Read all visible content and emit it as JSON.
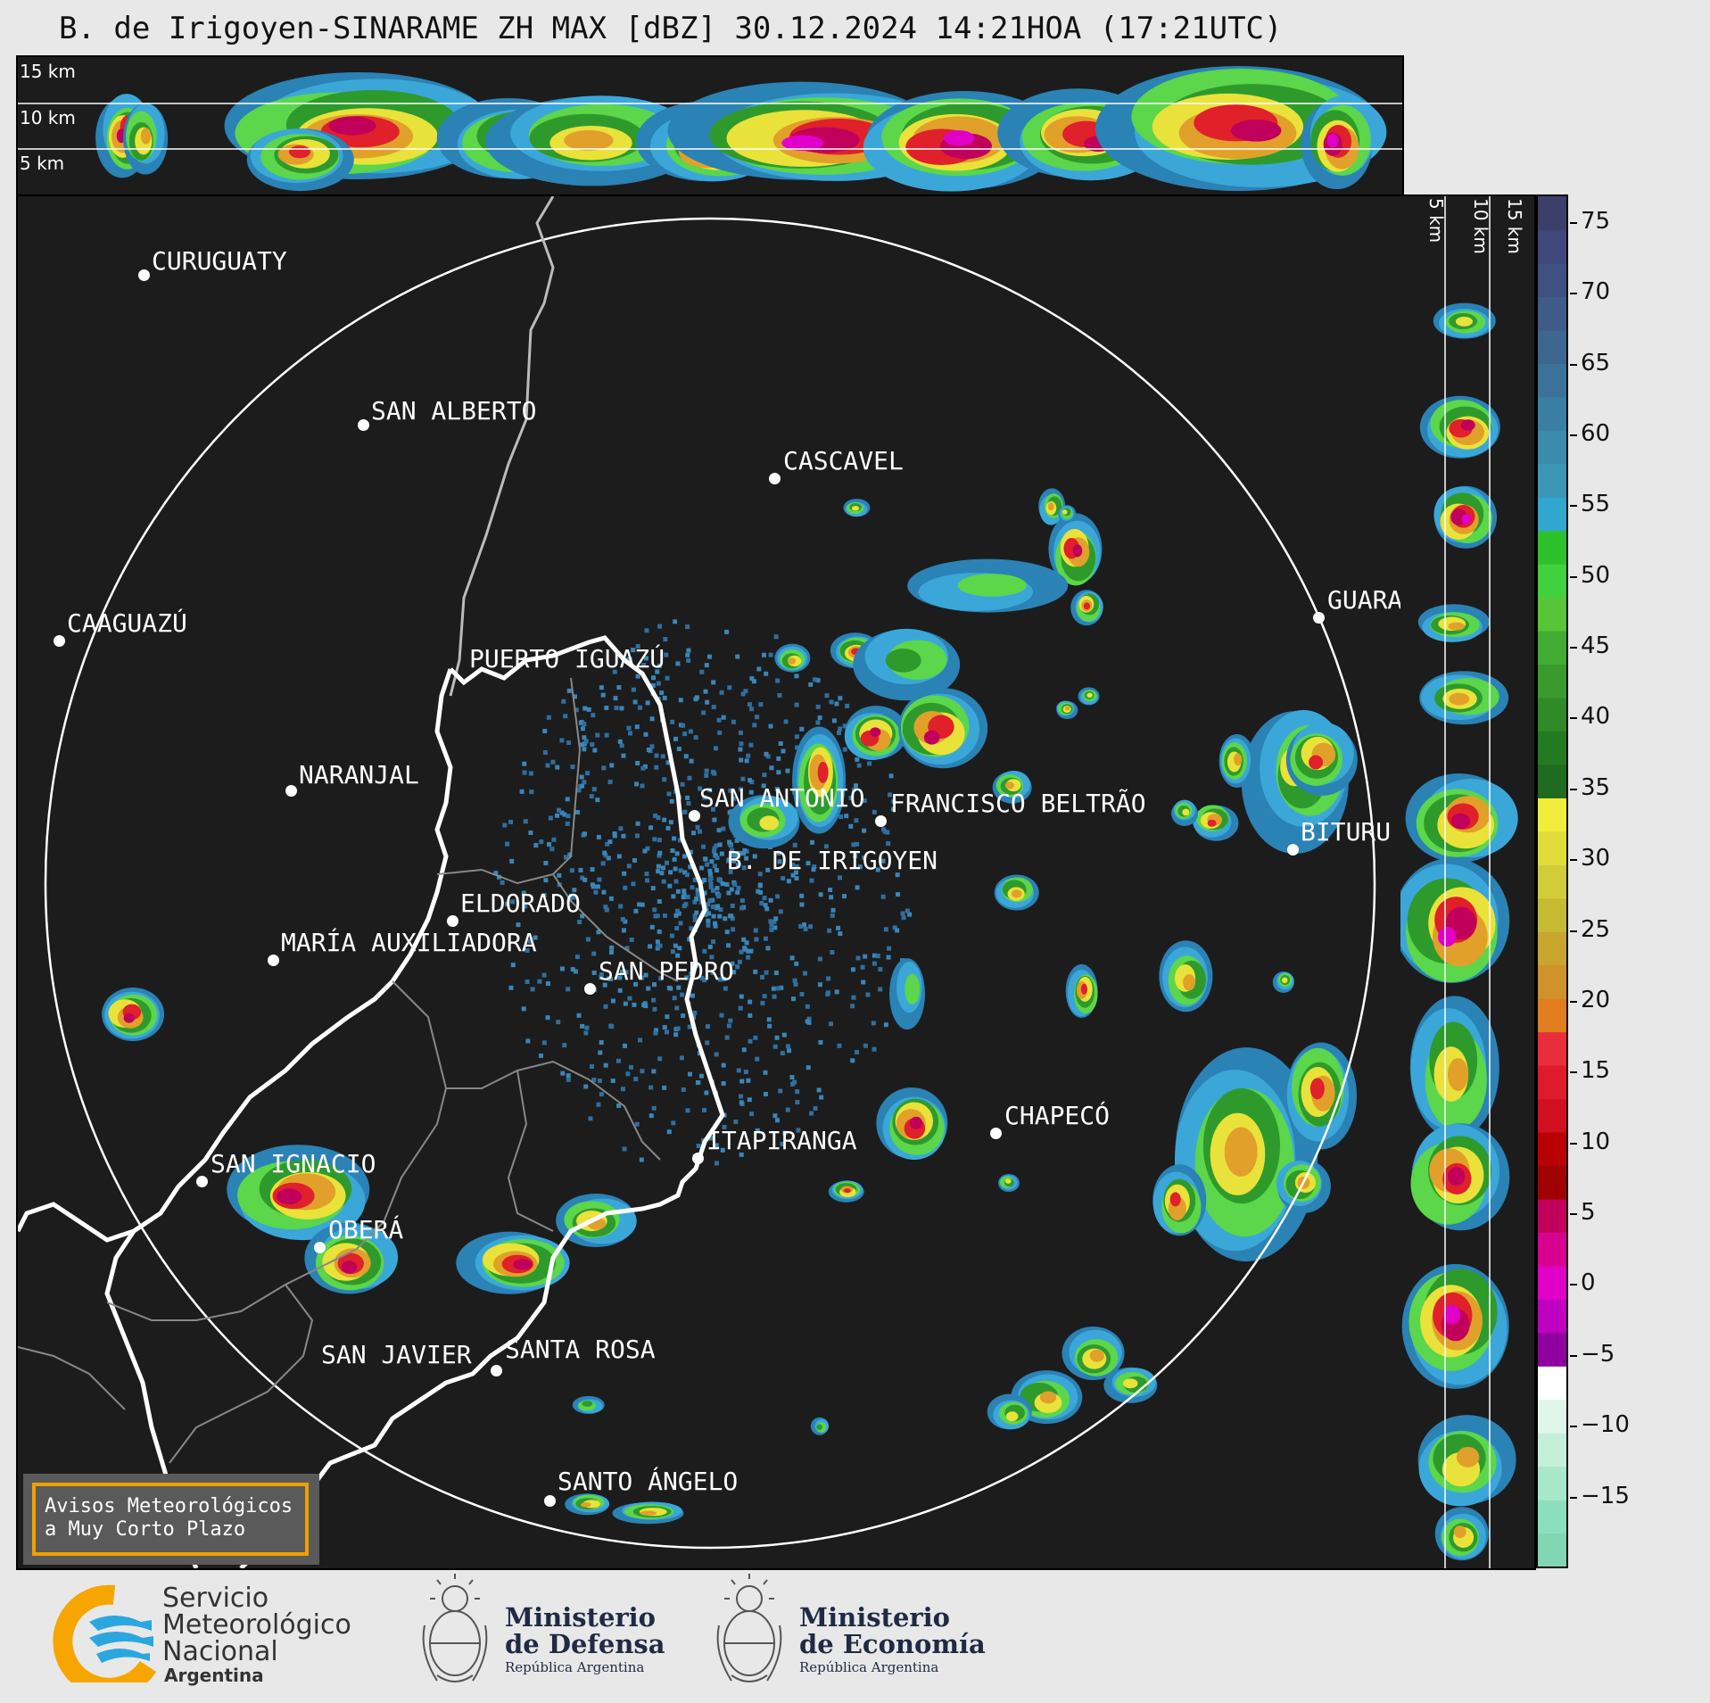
{
  "title": "B. de Irigoyen-SINARAME ZH MAX [dBZ] 30.12.2024 14:21HOA (17:21UTC)",
  "top_panel": {
    "altitude_labels": [
      "15 km",
      "10 km",
      "5 km"
    ]
  },
  "side_panel": {
    "altitude_labels": [
      "5 km",
      "10 km",
      "15 km"
    ]
  },
  "cities": [
    {
      "name": "CURUGUATY"
    },
    {
      "name": "SAN ALBERTO"
    },
    {
      "name": "CASCAVEL"
    },
    {
      "name": "CAAGUAZÚ"
    },
    {
      "name": "GUARA"
    },
    {
      "name": "PUERTO IGUAZÚ"
    },
    {
      "name": "NARANJAL"
    },
    {
      "name": "SAN ANTONIO"
    },
    {
      "name": "FRANCISCO BELTRÃO"
    },
    {
      "name": "BITURU"
    },
    {
      "name": "B. DE IRIGOYEN"
    },
    {
      "name": "ELDORADO"
    },
    {
      "name": "MARÍA AUXILIADORA"
    },
    {
      "name": "SAN PEDRO"
    },
    {
      "name": "CHAPECÓ"
    },
    {
      "name": "ITAPIRANGA"
    },
    {
      "name": "SAN IGNACIO"
    },
    {
      "name": "OBERÁ"
    },
    {
      "name": "SAN JAVIER"
    },
    {
      "name": "SANTA ROSA"
    },
    {
      "name": "SANTO ÁNGELO"
    }
  ],
  "colorbar": {
    "unit": "dBZ",
    "ticks": [
      "75",
      "70",
      "65",
      "60",
      "55",
      "50",
      "45",
      "40",
      "35",
      "30",
      "25",
      "20",
      "15",
      "10",
      "5",
      "0",
      "−5",
      "−10",
      "−15"
    ],
    "min": -20,
    "max": 77
  },
  "alert": {
    "line1": "Avisos Meteorológicos",
    "line2": "a Muy Corto Plazo"
  },
  "logos": {
    "smn": {
      "line1": "Servicio",
      "line2": "Meteorológico",
      "line3": "Nacional",
      "line4": "Argentina"
    },
    "defensa": {
      "line1": "Ministerio",
      "line2": "de Defensa",
      "line3": "República Argentina"
    },
    "economia": {
      "line1": "Ministerio",
      "line2": "de Economía",
      "line3": "República Argentina"
    }
  },
  "colors": {
    "background": "#1c1c1c",
    "page": "#e8e8e8",
    "alert_border": "#f0a000",
    "smn_blue": "#2aa7df",
    "smn_orange": "#f7a600",
    "ministry_navy": "#1f2a44"
  }
}
